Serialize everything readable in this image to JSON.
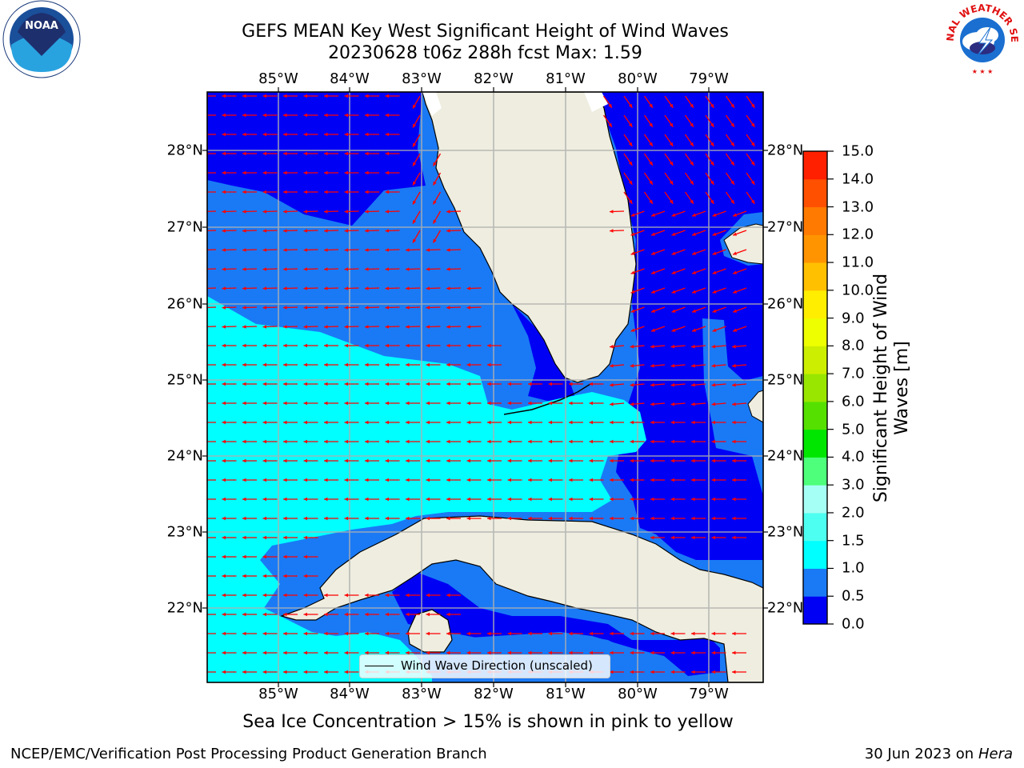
{
  "title": {
    "line1": "GEFS MEAN Key West Significant Height of Wind Waves",
    "line2": "20230628 t06z 288h fcst   Max: 1.59"
  },
  "lon_labels": [
    "85°W",
    "84°W",
    "83°W",
    "82°W",
    "81°W",
    "80°W",
    "79°W"
  ],
  "lat_labels": [
    "28°N",
    "27°N",
    "26°N",
    "25°N",
    "24°N",
    "23°N",
    "22°N"
  ],
  "colorbar": {
    "label": "Significant Height of Wind Waves [m]",
    "label_line1": "Significant Height of Wind",
    "label_line2": "Waves [m]",
    "ticks": [
      "0.0",
      "0.5",
      "1.0",
      "1.5",
      "2.0",
      "3.0",
      "4.0",
      "5.0",
      "6.0",
      "7.0",
      "8.0",
      "9.0",
      "10.0",
      "11.0",
      "12.0",
      "13.0",
      "14.0",
      "15.0"
    ],
    "colors": [
      "#0000f5",
      "#1a7af5",
      "#00ffff",
      "#4dfff0",
      "#a6fff5",
      "#4dff7a",
      "#00e600",
      "#55e000",
      "#99e600",
      "#ccee00",
      "#eeff00",
      "#ffee00",
      "#ffc000",
      "#ff9400",
      "#ff7a00",
      "#ff5000",
      "#ff2000"
    ]
  },
  "legend": {
    "label": "Wind Wave Direction (unscaled)"
  },
  "ice_note": "Sea Ice Concentration > 15% is shown in pink to yellow",
  "footer": {
    "left": "NCEP/EMC/Verification Post Processing Product Generation Branch",
    "right_date": "30 Jun 2023 on",
    "right_host": "Hera"
  },
  "logos": {
    "left": "NOAA",
    "right": "NATIONAL WEATHER SERVICE"
  },
  "map_colors": {
    "land": "#eeeddf",
    "coast": "#000000",
    "grid": "#b0b0b0",
    "arrow": "#ff0000",
    "band_0_0_5": "#0000f5",
    "band_0_5_1_0": "#1a7af5",
    "band_1_0_1_5": "#00ffff"
  }
}
